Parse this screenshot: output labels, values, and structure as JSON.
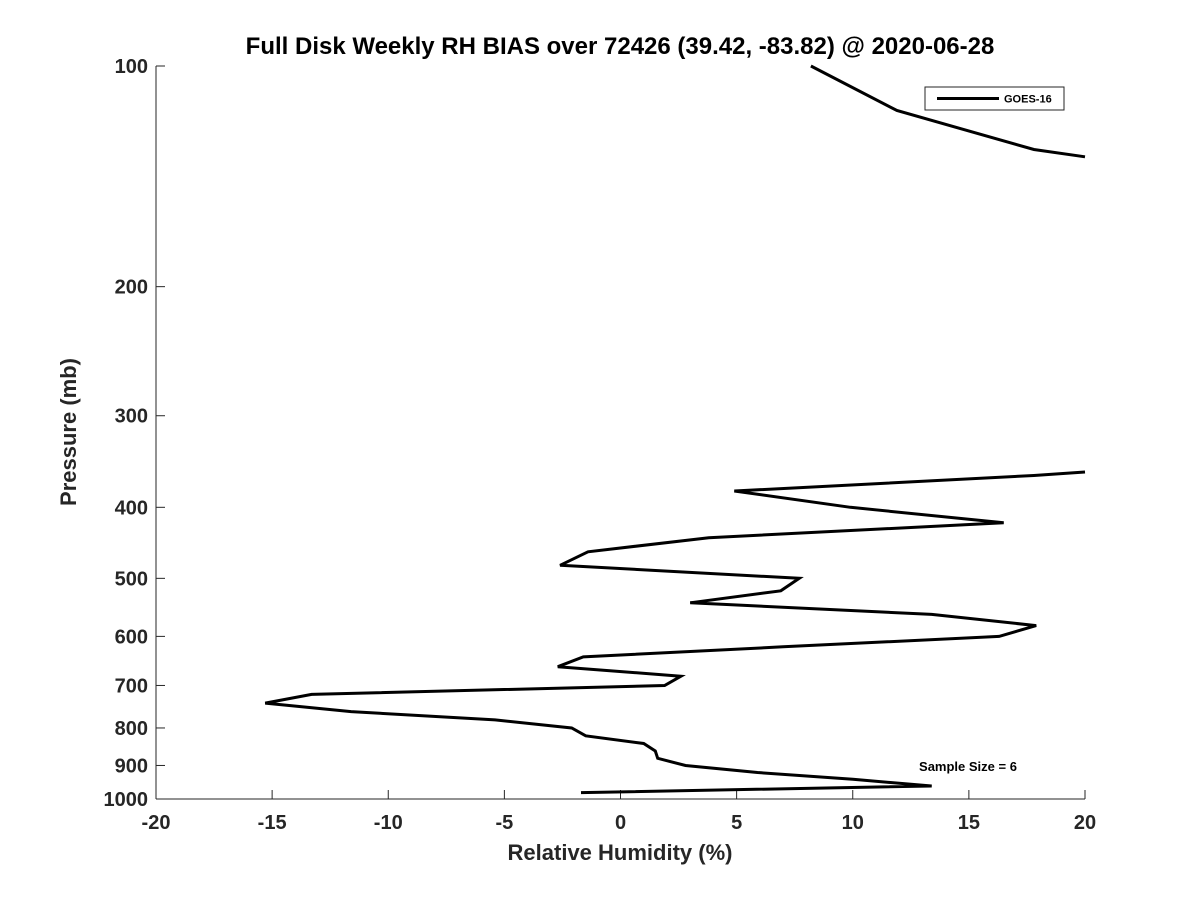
{
  "chart_data": {
    "type": "line",
    "title": "Full Disk Weekly RH BIAS over 72426 (39.42, -83.82) @ 2020-06-28",
    "xlabel": "Relative Humidity (%)",
    "ylabel": "Pressure (mb)",
    "xlim": [
      -20,
      20
    ],
    "ylim": [
      100,
      1000
    ],
    "yscale": "log",
    "y_reversed": true,
    "xticks": [
      -20,
      -15,
      -10,
      -5,
      0,
      5,
      10,
      15,
      20
    ],
    "xtick_labels": [
      "-20",
      "-15",
      "-10",
      "-5",
      "0",
      "5",
      "10",
      "15",
      "20"
    ],
    "yticks": [
      100,
      200,
      300,
      400,
      500,
      600,
      700,
      800,
      900,
      1000
    ],
    "ytick_labels": [
      "100",
      "200",
      "300",
      "400",
      "500",
      "600",
      "700",
      "800",
      "900",
      "1000"
    ],
    "grid": false,
    "legend_position": "top-right",
    "series": [
      {
        "name": "GOES-16",
        "color": "#000000",
        "segments": [
          [
            {
              "x": 8.2,
              "y": 100
            },
            {
              "x": 11.9,
              "y": 115
            },
            {
              "x": 17.8,
              "y": 130
            },
            {
              "x": 20.0,
              "y": 133
            }
          ],
          [
            {
              "x": 20.0,
              "y": 358
            },
            {
              "x": 17.8,
              "y": 362
            },
            {
              "x": 4.9,
              "y": 380
            },
            {
              "x": 9.9,
              "y": 400
            },
            {
              "x": 16.5,
              "y": 420
            },
            {
              "x": 3.8,
              "y": 440
            },
            {
              "x": -1.4,
              "y": 460
            },
            {
              "x": -2.6,
              "y": 480
            },
            {
              "x": 7.7,
              "y": 500
            },
            {
              "x": 6.9,
              "y": 520
            },
            {
              "x": 3.0,
              "y": 540
            },
            {
              "x": 13.4,
              "y": 560
            },
            {
              "x": 17.9,
              "y": 580
            },
            {
              "x": 16.3,
              "y": 600
            },
            {
              "x": 7.0,
              "y": 620
            },
            {
              "x": -1.6,
              "y": 640
            },
            {
              "x": -2.7,
              "y": 660
            },
            {
              "x": 2.6,
              "y": 680
            },
            {
              "x": 1.9,
              "y": 700
            },
            {
              "x": -13.3,
              "y": 720
            },
            {
              "x": -15.3,
              "y": 740
            },
            {
              "x": -11.6,
              "y": 760
            },
            {
              "x": -5.4,
              "y": 780
            },
            {
              "x": -2.1,
              "y": 800
            },
            {
              "x": -1.5,
              "y": 820
            },
            {
              "x": 1.0,
              "y": 840
            },
            {
              "x": 1.5,
              "y": 860
            },
            {
              "x": 1.6,
              "y": 880
            },
            {
              "x": 2.8,
              "y": 900
            },
            {
              "x": 5.9,
              "y": 920
            },
            {
              "x": 10.0,
              "y": 940
            },
            {
              "x": 13.4,
              "y": 960
            },
            {
              "x": -1.7,
              "y": 980
            }
          ]
        ]
      }
    ],
    "annotations": [
      "Sample Size = 6"
    ]
  }
}
